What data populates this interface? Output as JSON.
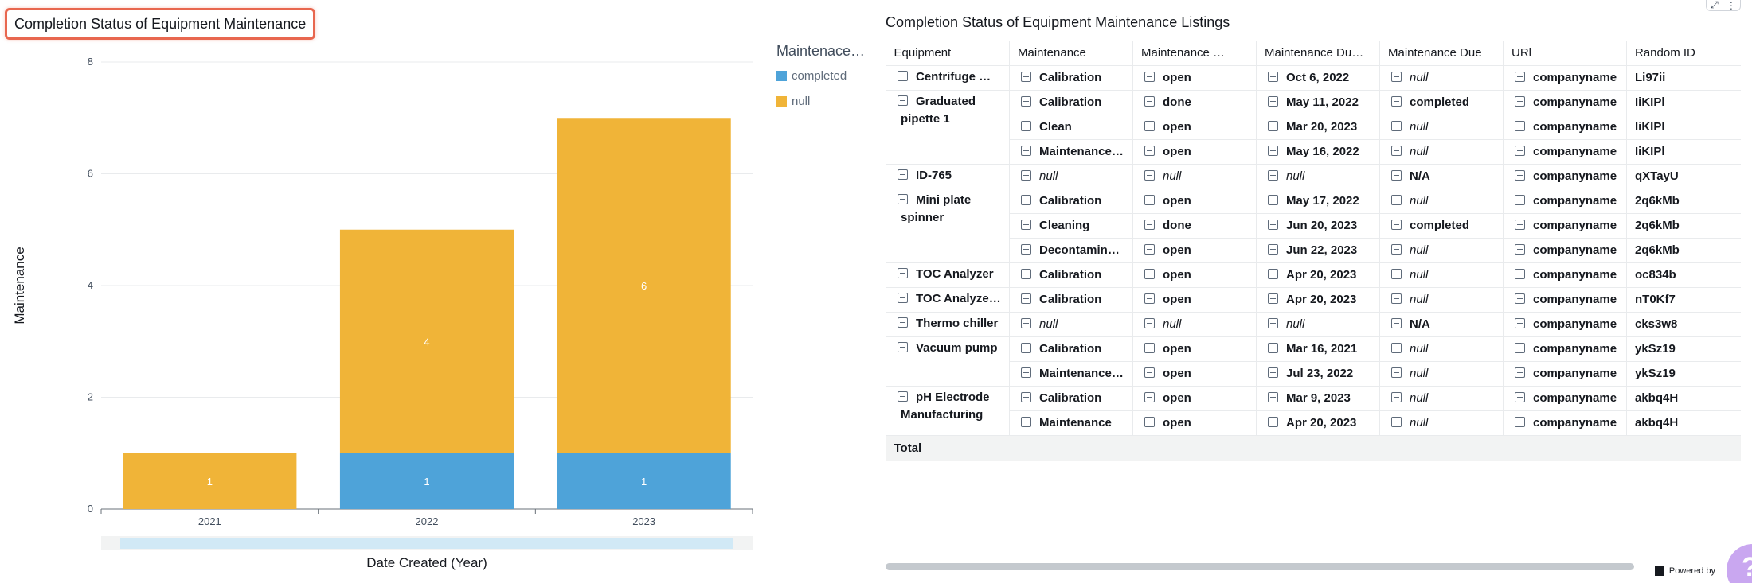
{
  "chart_panel": {
    "title": "Completion Status of Equipment Maintenance",
    "legend_title": "Maintenace…",
    "legend": [
      {
        "label": "completed",
        "color": "#4ea3d9"
      },
      {
        "label": "null",
        "color": "#f0b438"
      }
    ]
  },
  "chart_data": {
    "type": "bar",
    "stacked": true,
    "categories": [
      "2021",
      "2022",
      "2023"
    ],
    "series": [
      {
        "name": "completed",
        "values": [
          0,
          1,
          1
        ],
        "color": "#4ea3d9"
      },
      {
        "name": "null",
        "values": [
          1,
          4,
          6
        ],
        "color": "#f0b438"
      }
    ],
    "data_labels": [
      {
        "category": "2021",
        "series": "null",
        "text": "1"
      },
      {
        "category": "2022",
        "series": "completed",
        "text": "1"
      },
      {
        "category": "2022",
        "series": "null",
        "text": "4"
      },
      {
        "category": "2023",
        "series": "completed",
        "text": "1"
      },
      {
        "category": "2023",
        "series": "null",
        "text": "6"
      }
    ],
    "xlabel": "Date Created (Year)",
    "ylabel": "Maintenance",
    "ylim": [
      0,
      8
    ],
    "yticks": [
      "0",
      "2",
      "4",
      "6",
      "8"
    ],
    "grid": true,
    "legend_position": "right"
  },
  "table_panel": {
    "title": "Completion Status of Equipment Maintenance Listings",
    "columns": [
      "Equipment",
      "Maintenance",
      "Maintenance …",
      "Maintenance Du…",
      "Maintenance Due",
      "URl",
      "Random ID"
    ],
    "groups": [
      {
        "equipment": "Centrifuge …",
        "rows": [
          [
            "Calibration",
            "open",
            "Oct 6, 2022",
            "null",
            "companyname",
            "Li97ii"
          ]
        ]
      },
      {
        "equipment": "Graduated pipette 1",
        "rows": [
          [
            "Calibration",
            "done",
            "May 11, 2022",
            "completed",
            "companyname",
            "IiKIPl"
          ],
          [
            "Clean",
            "open",
            "Mar 20, 2023",
            "null",
            "companyname",
            "IiKIPl"
          ],
          [
            "Maintenance…",
            "open",
            "May 16, 2022",
            "null",
            "companyname",
            "IiKIPl"
          ]
        ]
      },
      {
        "equipment": "ID-765",
        "rows": [
          [
            "null",
            "null",
            "null",
            "N/A",
            "companyname",
            "qXTayU"
          ]
        ]
      },
      {
        "equipment": "Mini plate spinner",
        "rows": [
          [
            "Calibration",
            "open",
            "May 17, 2022",
            "null",
            "companyname",
            "2q6kMb"
          ],
          [
            "Cleaning",
            "done",
            "Jun 20, 2023",
            "completed",
            "companyname",
            "2q6kMb"
          ],
          [
            "Decontamin…",
            "open",
            "Jun 22, 2023",
            "null",
            "companyname",
            "2q6kMb"
          ]
        ]
      },
      {
        "equipment": "TOC Analyzer",
        "rows": [
          [
            "Calibration",
            "open",
            "Apr 20, 2023",
            "null",
            "companyname",
            "oc834b"
          ]
        ]
      },
      {
        "equipment": "TOC Analyze…",
        "rows": [
          [
            "Calibration",
            "open",
            "Apr 20, 2023",
            "null",
            "companyname",
            "nT0Kf7"
          ]
        ]
      },
      {
        "equipment": "Thermo chiller",
        "rows": [
          [
            "null",
            "null",
            "null",
            "N/A",
            "companyname",
            "cks3w8"
          ]
        ]
      },
      {
        "equipment": "Vacuum pump",
        "rows": [
          [
            "Calibration",
            "open",
            "Mar 16, 2021",
            "null",
            "companyname",
            "ykSz19"
          ],
          [
            "Maintenance…",
            "open",
            "Jul 23, 2022",
            "null",
            "companyname",
            "ykSz19"
          ]
        ]
      },
      {
        "equipment": "pH Electrode Manufacturing",
        "rows": [
          [
            "Calibration",
            "open",
            "Mar 9, 2023",
            "null",
            "companyname",
            "akbq4H"
          ],
          [
            "Maintenance",
            "open",
            "Apr 20, 2023",
            "null",
            "companyname",
            "akbq4H"
          ]
        ]
      }
    ],
    "total_label": "Total",
    "powered_by": "Powered by",
    "help_label": "?"
  }
}
